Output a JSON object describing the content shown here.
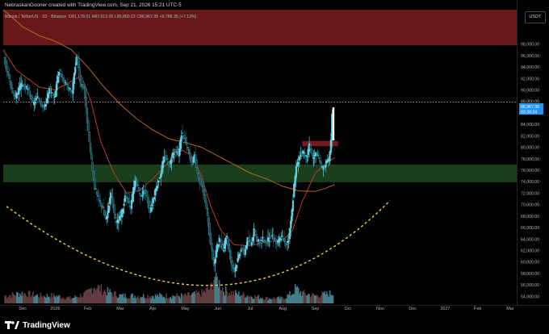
{
  "header": {
    "attribution": "NebraskanGooner created with TradingView.com, Sep 21, 2026 15:21 UTC-5",
    "symbol": "Bitcoin / TetherUS · 1D · Binance",
    "ohlc": "O81,178.01 H87,012.00 L80,850.22 C86,967.35 +5,789.35 (+7.13%)"
  },
  "currency_label": "USDT",
  "price_tag": {
    "price": "86,967.35",
    "countdown": "03:38:34"
  },
  "footer": {
    "brand": "TradingView",
    "logo_mark": "17"
  },
  "colors": {
    "up": "#26a69a",
    "up_fill": "#5fd3e6",
    "down": "#ef5350",
    "resistance_zone": "#7a1d1d",
    "support_zone": "#1f4a22",
    "mini_supply_zone": "#8b1e26",
    "ma_short": "#c0392b",
    "ma_long": "#b9651f",
    "arc": "#f0d23a",
    "price_tag_bg": "#2196f3"
  },
  "chart_data": {
    "type": "candlestick",
    "interval": "1D",
    "x_axis_ticks": [
      "Dec",
      "2026",
      "Feb",
      "Mar",
      "Apr",
      "May",
      "Jun",
      "Jul",
      "Aug",
      "Sep",
      "Oct",
      "Nov",
      "Dec",
      "2027",
      "Feb",
      "Mar"
    ],
    "y_axis_ticks": [
      98000,
      96000,
      94000,
      92000,
      90000,
      88000,
      86000,
      84000,
      82000,
      80000,
      78000,
      76000,
      74000,
      72000,
      70000,
      68000,
      66000,
      64000,
      62000,
      60000,
      58000,
      56000,
      54000
    ],
    "ylim": [
      52500,
      104000
    ],
    "x_range_months": [
      -0.6,
      15.2
    ],
    "last_price": 86967.35,
    "dotted_level": 87900,
    "zones": [
      {
        "name": "upper resistance",
        "from": 97800,
        "to": 104000
      },
      {
        "name": "support",
        "from": 73900,
        "to": 77000
      },
      {
        "name": "local supply",
        "from": 80200,
        "to": 81100,
        "x_from": 8.6,
        "x_to": 9.7
      }
    ],
    "price_path": [
      [
        -0.6,
        97000
      ],
      [
        -0.4,
        92000
      ],
      [
        -0.2,
        88500
      ],
      [
        0.0,
        91000
      ],
      [
        0.2,
        90000
      ],
      [
        0.35,
        87500
      ],
      [
        0.5,
        88800
      ],
      [
        0.7,
        86800
      ],
      [
        0.85,
        90000
      ],
      [
        1.0,
        88500
      ],
      [
        1.15,
        93500
      ],
      [
        1.35,
        91000
      ],
      [
        1.55,
        89500
      ],
      [
        1.7,
        96500
      ],
      [
        1.8,
        91000
      ],
      [
        1.92,
        90500
      ],
      [
        2.05,
        82500
      ],
      [
        2.15,
        77500
      ],
      [
        2.25,
        73000
      ],
      [
        2.35,
        71000
      ],
      [
        2.5,
        69500
      ],
      [
        2.6,
        67000
      ],
      [
        2.75,
        72500
      ],
      [
        2.9,
        66500
      ],
      [
        3.05,
        68000
      ],
      [
        3.2,
        71500
      ],
      [
        3.35,
        69500
      ],
      [
        3.5,
        74500
      ],
      [
        3.65,
        71500
      ],
      [
        3.8,
        72500
      ],
      [
        3.95,
        69000
      ],
      [
        4.1,
        72000
      ],
      [
        4.25,
        75000
      ],
      [
        4.4,
        78500
      ],
      [
        4.55,
        77000
      ],
      [
        4.7,
        79500
      ],
      [
        4.82,
        78500
      ],
      [
        4.92,
        82500
      ],
      [
        5.02,
        81500
      ],
      [
        5.12,
        79500
      ],
      [
        5.22,
        77000
      ],
      [
        5.32,
        78500
      ],
      [
        5.45,
        74500
      ],
      [
        5.55,
        73500
      ],
      [
        5.65,
        70500
      ],
      [
        5.75,
        66500
      ],
      [
        5.85,
        62000
      ],
      [
        5.92,
        59500
      ],
      [
        6.0,
        62500
      ],
      [
        6.1,
        64000
      ],
      [
        6.2,
        61500
      ],
      [
        6.3,
        65000
      ],
      [
        6.38,
        62000
      ],
      [
        6.45,
        60000
      ],
      [
        6.55,
        58500
      ],
      [
        6.65,
        60500
      ],
      [
        6.75,
        62500
      ],
      [
        6.85,
        61500
      ],
      [
        6.95,
        64000
      ],
      [
        7.05,
        63000
      ],
      [
        7.15,
        65500
      ],
      [
        7.25,
        63500
      ],
      [
        7.4,
        64000
      ],
      [
        7.55,
        63500
      ],
      [
        7.7,
        64800
      ],
      [
        7.85,
        63200
      ],
      [
        8.0,
        64500
      ],
      [
        8.12,
        63000
      ],
      [
        8.22,
        64200
      ],
      [
        8.3,
        68000
      ],
      [
        8.38,
        73000
      ],
      [
        8.46,
        77000
      ],
      [
        8.56,
        78500
      ],
      [
        8.66,
        79000
      ],
      [
        8.76,
        78200
      ],
      [
        8.86,
        80500
      ],
      [
        8.96,
        78000
      ],
      [
        9.06,
        79000
      ],
      [
        9.16,
        77500
      ],
      [
        9.26,
        76200
      ],
      [
        9.36,
        77200
      ],
      [
        9.46,
        77800
      ],
      [
        9.52,
        81200
      ],
      [
        9.56,
        86967
      ]
    ],
    "volume_path": [
      [
        -0.5,
        3
      ],
      [
        0.0,
        4
      ],
      [
        0.5,
        3
      ],
      [
        1.0,
        3
      ],
      [
        1.5,
        2
      ],
      [
        2.0,
        4
      ],
      [
        2.2,
        7
      ],
      [
        2.5,
        5
      ],
      [
        3.0,
        3
      ],
      [
        3.5,
        3
      ],
      [
        4.0,
        3
      ],
      [
        4.5,
        3
      ],
      [
        5.0,
        3
      ],
      [
        5.5,
        4
      ],
      [
        5.8,
        6
      ],
      [
        5.9,
        11
      ],
      [
        6.2,
        5
      ],
      [
        6.5,
        4
      ],
      [
        7.0,
        3
      ],
      [
        7.5,
        2
      ],
      [
        8.0,
        2
      ],
      [
        8.3,
        4
      ],
      [
        8.4,
        6
      ],
      [
        8.6,
        4
      ],
      [
        9.0,
        3
      ],
      [
        9.5,
        4
      ]
    ],
    "volume_max": 12,
    "series": [
      {
        "name": "",
        "type": "line",
        "points": [
          [
            -0.6,
            97000
          ],
          [
            -0.2,
            93500
          ],
          [
            0.5,
            90500
          ],
          [
            1.0,
            90000
          ],
          [
            1.5,
            91500
          ],
          [
            1.8,
            92500
          ],
          [
            2.1,
            88000
          ],
          [
            2.4,
            81000
          ],
          [
            2.8,
            75500
          ],
          [
            3.2,
            72000
          ],
          [
            3.6,
            72500
          ],
          [
            4.0,
            74500
          ],
          [
            4.5,
            77500
          ],
          [
            4.9,
            79500
          ],
          [
            5.2,
            78500
          ],
          [
            5.5,
            75000
          ],
          [
            5.8,
            69500
          ],
          [
            6.1,
            65500
          ],
          [
            6.5,
            63000
          ],
          [
            7.0,
            62800
          ],
          [
            7.5,
            63500
          ],
          [
            8.0,
            63800
          ],
          [
            8.3,
            65500
          ],
          [
            8.6,
            70500
          ],
          [
            9.0,
            75500
          ],
          [
            9.4,
            77500
          ],
          [
            9.6,
            78200
          ]
        ]
      },
      {
        "name": "",
        "type": "line",
        "points": [
          [
            -0.6,
            104000
          ],
          [
            0.0,
            101000
          ],
          [
            0.5,
            99500
          ],
          [
            1.0,
            98500
          ],
          [
            1.5,
            97000
          ],
          [
            2.0,
            94000
          ],
          [
            2.5,
            90500
          ],
          [
            3.0,
            87500
          ],
          [
            3.5,
            85000
          ],
          [
            4.0,
            83000
          ],
          [
            4.5,
            81500
          ],
          [
            5.0,
            80800
          ],
          [
            5.5,
            80000
          ],
          [
            6.0,
            78500
          ],
          [
            6.5,
            77000
          ],
          [
            7.0,
            75500
          ],
          [
            7.5,
            74500
          ],
          [
            8.0,
            73200
          ],
          [
            8.5,
            72400
          ],
          [
            9.0,
            72300
          ],
          [
            9.3,
            72800
          ],
          [
            9.6,
            73500
          ]
        ]
      }
    ],
    "arc": {
      "start": [
        -0.5,
        69700
      ],
      "vertex": [
        6.2,
        55900
      ],
      "end": [
        11.3,
        70700
      ]
    }
  }
}
